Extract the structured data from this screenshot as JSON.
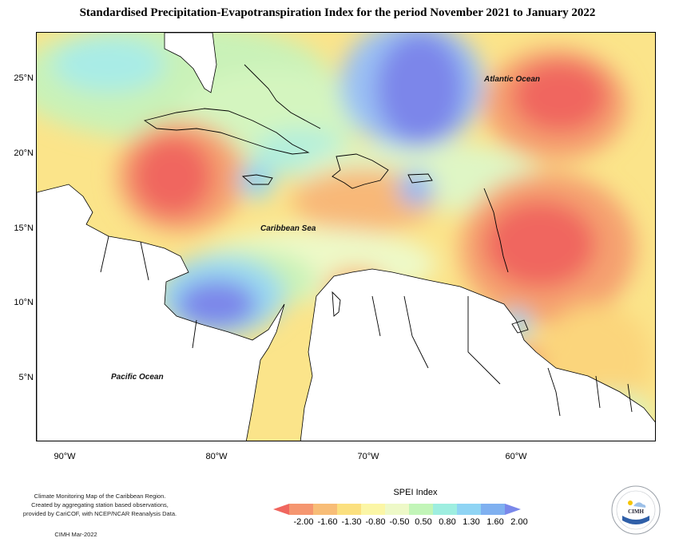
{
  "title": "Standardised Precipitation-Evapotranspiration Index for the period November 2021 to January 2022",
  "ocean_labels": {
    "atlantic": "Atlantic Ocean",
    "caribbean": "Caribbean Sea",
    "pacific": "Pacific Ocean"
  },
  "lat_ticks": [
    "25°N",
    "20°N",
    "15°N",
    "10°N",
    "5°N"
  ],
  "lon_ticks": [
    "90°W",
    "80°W",
    "70°W",
    "60°W"
  ],
  "credit": {
    "line1": "Climate Monitoring Map of the Caribbean Region.",
    "line2": "Created by aggregating station based observations,",
    "line3": "provided by CariCOF, with NCEP/NCAR Reanalysis Data.",
    "stamp": "CIMH Mar-2022"
  },
  "legend": {
    "title": "SPEI Index",
    "labels": [
      "-2.00",
      "-1.60",
      "-1.30",
      "-0.80",
      "-0.50",
      "0.50",
      "0.80",
      "1.30",
      "1.60",
      "2.00"
    ],
    "colors": [
      "#f0665e",
      "#f59670",
      "#f8bd77",
      "#fbe07f",
      "#fbf6a6",
      "#eef9c8",
      "#c2f5b8",
      "#9eeee0",
      "#8fd4f4",
      "#7fb0f0",
      "#7a88ea"
    ]
  },
  "logo": {
    "name": "CIMH"
  }
}
